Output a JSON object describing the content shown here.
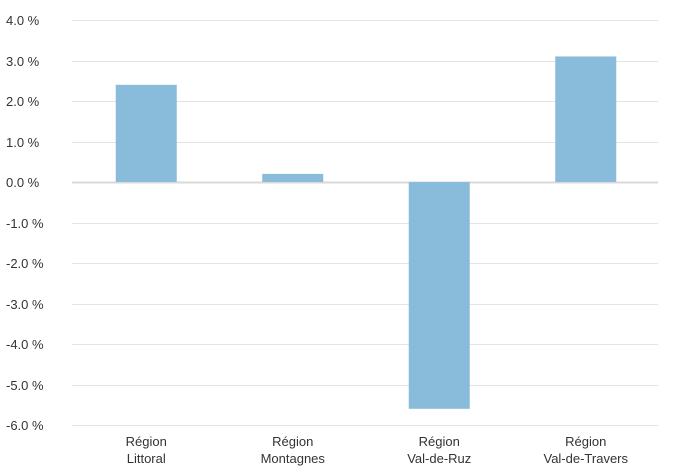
{
  "chart_data": {
    "type": "bar",
    "categories": [
      [
        "Région",
        "Littoral"
      ],
      [
        "Région",
        "Montagnes"
      ],
      [
        "Région",
        "Val-de-Ruz"
      ],
      [
        "Région",
        "Val-de-Travers"
      ]
    ],
    "values": [
      2.4,
      0.2,
      -5.6,
      3.1
    ],
    "ylim": [
      -6.0,
      4.0
    ],
    "yticks": [
      4.0,
      3.0,
      2.0,
      1.0,
      0.0,
      -1.0,
      -2.0,
      -3.0,
      -4.0,
      -5.0,
      -6.0
    ],
    "ytick_labels": [
      "4.0 %",
      "3.0 %",
      "2.0 %",
      "1.0 %",
      "0.0 %",
      "-1.0 %",
      "-2.0 %",
      "-3.0 %",
      "-4.0 %",
      "-5.0 %",
      "-6.0 %"
    ],
    "grid": true,
    "bar_color": "#89bbdb",
    "grid_color": "#e3e3e3"
  }
}
